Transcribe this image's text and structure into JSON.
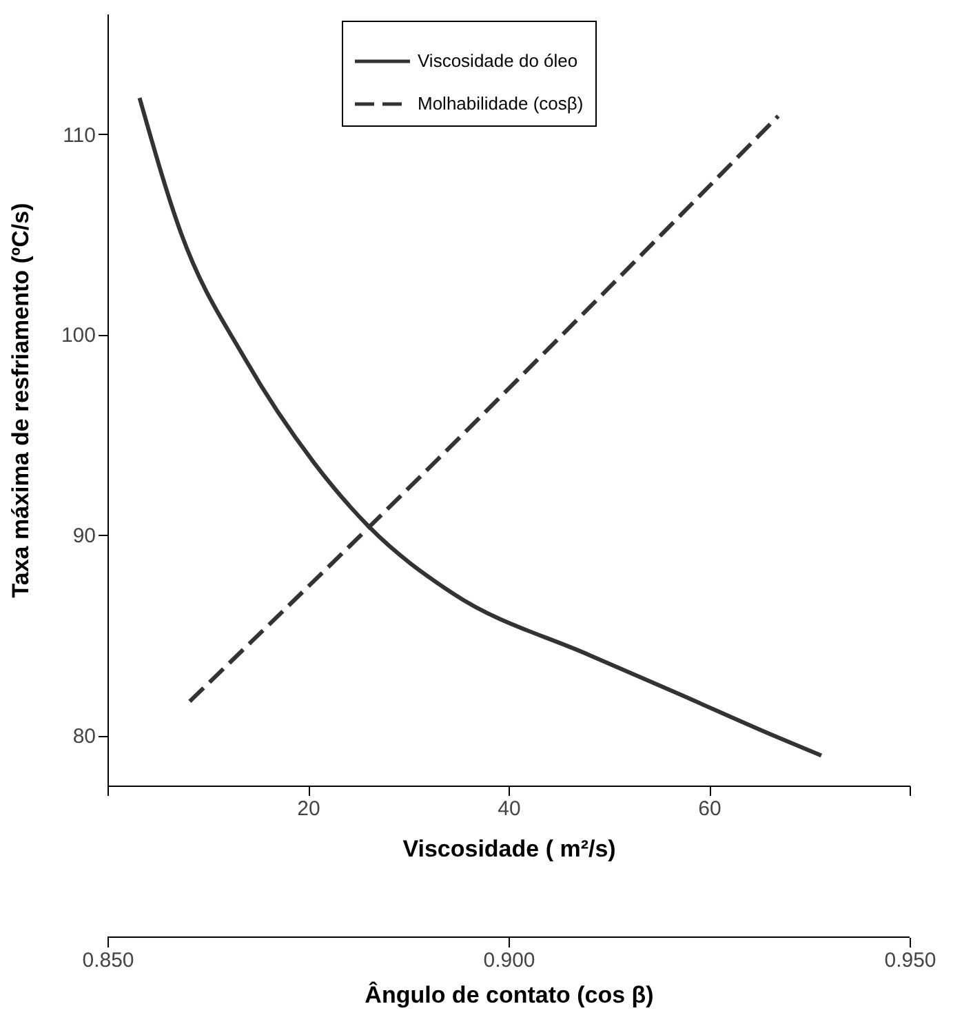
{
  "chart_data": {
    "type": "line",
    "xlabel": "Viscosidade ( m²/s)",
    "ylabel": "Taxa máxima de resfriamento (ºC/s)",
    "x2label": "Ângulo de contato (cos β)",
    "xlim": [
      0,
      80
    ],
    "xticks": [
      {
        "value": 0,
        "label": null
      },
      20,
      40,
      60,
      {
        "value": 80,
        "label": null
      }
    ],
    "ylim": [
      77.5,
      116
    ],
    "yticks": [
      80,
      90,
      100,
      110
    ],
    "x2lim": [
      0.85,
      0.95
    ],
    "x2ticks": [
      {
        "value": 0.85,
        "label": "0.850"
      },
      {
        "value": 0.9,
        "label": "0.900"
      },
      {
        "value": 0.95,
        "label": "0.950"
      }
    ],
    "grid": false,
    "legend": "top",
    "marker": "none",
    "series": [
      {
        "name": "Viscosidade do óleo",
        "color": "#333333",
        "line_style": "solid",
        "x": [
          3.2,
          7.3,
          13.7,
          20.6,
          26.1,
          34.4,
          48.1,
          57.3,
          66.4,
          71.2
        ],
        "values": [
          111.8,
          105.1,
          98.8,
          93.6,
          90.4,
          87.1,
          84.0,
          82.0,
          80.0,
          79.0
        ]
      },
      {
        "name": "Molhabilidade (cosβ)",
        "color": "#333333",
        "line_style": "dashed",
        "x": [
          8.2,
          26.1,
          66.9
        ],
        "values": [
          81.7,
          90.4,
          110.9
        ]
      }
    ]
  }
}
